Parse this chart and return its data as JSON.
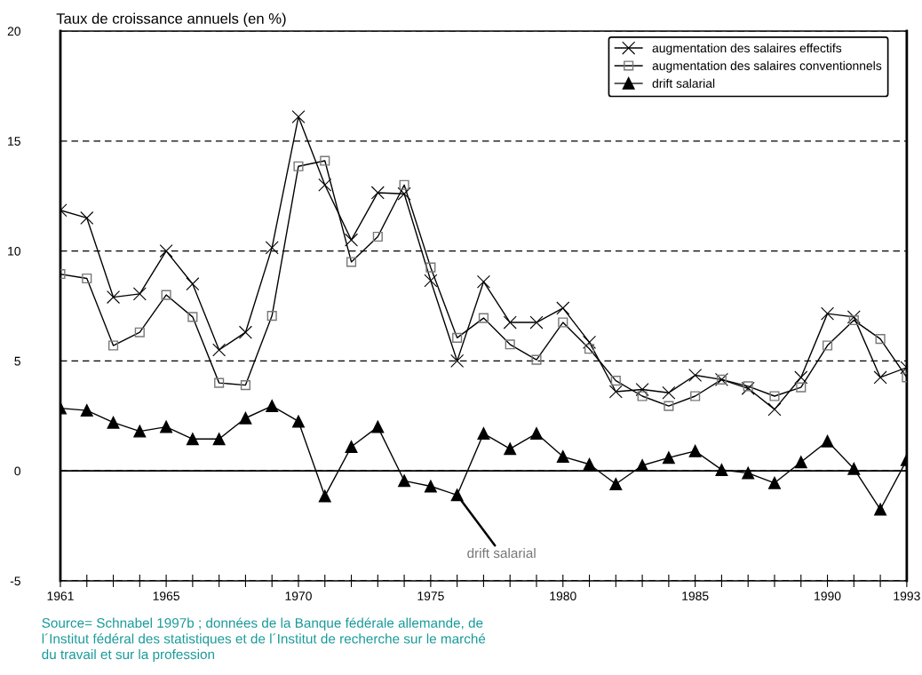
{
  "chart_data": {
    "type": "line",
    "title": "Taux de croissance annuels (en %)",
    "x": [
      1961,
      1962,
      1963,
      1964,
      1965,
      1966,
      1967,
      1968,
      1969,
      1970,
      1971,
      1972,
      1973,
      1974,
      1975,
      1976,
      1977,
      1978,
      1979,
      1980,
      1981,
      1982,
      1983,
      1984,
      1985,
      1986,
      1987,
      1988,
      1989,
      1990,
      1991,
      1992,
      1993
    ],
    "series": [
      {
        "name": "augmentation des salaires effectifs",
        "color": "#000000",
        "marker": "cross",
        "values": [
          11.85,
          11.5,
          7.9,
          8.05,
          10.0,
          8.5,
          5.5,
          6.3,
          10.15,
          16.1,
          13.0,
          10.5,
          12.65,
          12.6,
          8.65,
          5.0,
          8.6,
          6.75,
          6.75,
          7.4,
          5.85,
          3.6,
          3.7,
          3.55,
          4.35,
          4.15,
          3.75,
          2.8,
          4.25,
          7.15,
          7.0,
          4.25,
          4.7
        ]
      },
      {
        "name": "augmentation des salaires conventionnels",
        "color": "#000000",
        "marker": "square",
        "values": [
          8.95,
          8.75,
          5.7,
          6.3,
          8.0,
          7.0,
          4.0,
          3.9,
          7.05,
          13.85,
          14.1,
          9.5,
          10.65,
          13.0,
          9.25,
          6.05,
          6.95,
          5.75,
          5.05,
          6.75,
          5.55,
          4.1,
          3.4,
          2.95,
          3.4,
          4.15,
          3.85,
          3.4,
          3.8,
          5.7,
          6.85,
          6.0,
          4.25
        ]
      },
      {
        "name": "drift salarial",
        "color": "#000000",
        "marker": "triangle",
        "values": [
          2.85,
          2.75,
          2.2,
          1.8,
          2.0,
          1.45,
          1.45,
          2.4,
          2.95,
          2.25,
          -1.15,
          1.1,
          2.0,
          -0.45,
          -0.7,
          -1.1,
          1.7,
          1.0,
          1.7,
          0.65,
          0.3,
          -0.6,
          0.25,
          0.6,
          0.9,
          0.05,
          -0.1,
          -0.55,
          0.4,
          1.35,
          0.1,
          -1.75,
          0.5
        ]
      }
    ],
    "xlim": [
      1961,
      1993
    ],
    "xticks": [
      1961,
      {
        "value": 1962,
        "label": null
      },
      {
        "value": 1963,
        "label": null
      },
      {
        "value": 1964,
        "label": null
      },
      1965,
      {
        "value": 1966,
        "label": null
      },
      {
        "value": 1967,
        "label": null
      },
      {
        "value": 1968,
        "label": null
      },
      {
        "value": 1969,
        "label": null
      },
      1970,
      {
        "value": 1971,
        "label": null
      },
      {
        "value": 1972,
        "label": null
      },
      {
        "value": 1973,
        "label": null
      },
      {
        "value": 1974,
        "label": null
      },
      1975,
      {
        "value": 1976,
        "label": null
      },
      {
        "value": 1977,
        "label": null
      },
      {
        "value": 1978,
        "label": null
      },
      {
        "value": 1979,
        "label": null
      },
      1980,
      {
        "value": 1981,
        "label": null
      },
      {
        "value": 1982,
        "label": null
      },
      {
        "value": 1983,
        "label": null
      },
      {
        "value": 1984,
        "label": null
      },
      1985,
      {
        "value": 1986,
        "label": null
      },
      {
        "value": 1987,
        "label": null
      },
      {
        "value": 1988,
        "label": null
      },
      {
        "value": 1989,
        "label": null
      },
      1990,
      {
        "value": 1991,
        "label": null
      },
      {
        "value": 1992,
        "label": null
      },
      1993
    ],
    "ylim": [
      -5,
      20
    ],
    "yticks": [
      -5,
      0,
      5,
      10,
      15,
      20
    ],
    "grid": "y",
    "ref_lines": [
      {
        "axis": "y",
        "value": 0,
        "color": "#000000",
        "line_style": "solid"
      }
    ],
    "legend": "top right",
    "annotations": [
      {
        "text": "drift salarial",
        "x": 1976,
        "y": -1.1
      },
      "Source= Schnabel 1997b ; données de la Banque fédérale allemande, de\nl´Institut fédéral des statistiques et de l´Institut de recherche sur le marché\ndu travail et sur la profession"
    ]
  }
}
